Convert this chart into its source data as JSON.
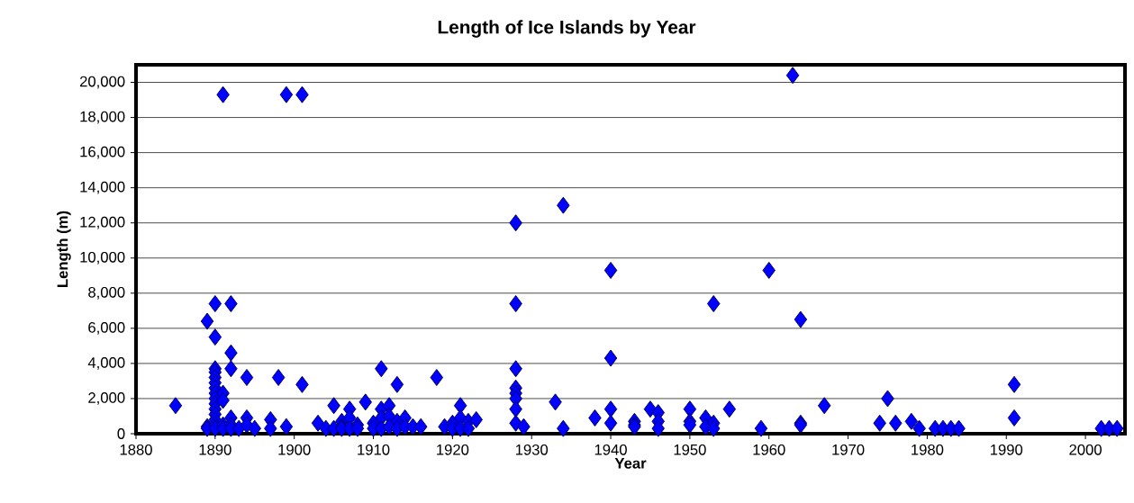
{
  "chart_data": {
    "type": "scatter",
    "title": "Length of Ice Islands by Year",
    "xlabel": "Year",
    "ylabel": "Length (m)",
    "x": [
      1885,
      1889,
      1889,
      1889,
      1890,
      1890,
      1890,
      1890,
      1890,
      1890,
      1890,
      1890,
      1890,
      1890,
      1890,
      1890,
      1890,
      1890,
      1890,
      1891,
      1891,
      1891,
      1891,
      1891,
      1892,
      1892,
      1892,
      1892,
      1892,
      1892,
      1893,
      1894,
      1894,
      1894,
      1895,
      1897,
      1897,
      1898,
      1899,
      1899,
      1901,
      1901,
      1903,
      1904,
      1905,
      1905,
      1906,
      1906,
      1906,
      1907,
      1907,
      1907,
      1908,
      1908,
      1909,
      1910,
      1910,
      1911,
      1911,
      1911,
      1911,
      1912,
      1912,
      1912,
      1913,
      1913,
      1913,
      1914,
      1914,
      1915,
      1916,
      1918,
      1919,
      1920,
      1920,
      1921,
      1921,
      1921,
      1922,
      1922,
      1923,
      1928,
      1928,
      1928,
      1928,
      1928,
      1928,
      1928,
      1928,
      1929,
      1933,
      1934,
      1934,
      1938,
      1940,
      1940,
      1940,
      1940,
      1943,
      1943,
      1943,
      1945,
      1946,
      1946,
      1946,
      1950,
      1950,
      1950,
      1952,
      1952,
      1953,
      1953,
      1953,
      1955,
      1959,
      1960,
      1963,
      1964,
      1964,
      1964,
      1967,
      1974,
      1975,
      1976,
      1978,
      1979,
      1981,
      1982,
      1983,
      1984,
      1991,
      1991,
      2002,
      2003,
      2004
    ],
    "values": [
      1600,
      6400,
      400,
      300,
      7400,
      5500,
      3700,
      3500,
      3200,
      2900,
      2600,
      2300,
      2000,
      1700,
      1400,
      1100,
      800,
      500,
      300,
      19300,
      2300,
      1900,
      500,
      300,
      7400,
      4600,
      3700,
      900,
      500,
      300,
      300,
      3200,
      900,
      500,
      300,
      800,
      300,
      3200,
      19300,
      400,
      19300,
      2800,
      600,
      300,
      1600,
      300,
      700,
      400,
      300,
      1400,
      900,
      300,
      500,
      300,
      1800,
      600,
      300,
      3700,
      1400,
      900,
      300,
      1600,
      1000,
      400,
      2800,
      700,
      300,
      900,
      400,
      400,
      400,
      3200,
      400,
      600,
      300,
      1600,
      900,
      300,
      700,
      300,
      800,
      12000,
      7400,
      3700,
      2600,
      2300,
      2000,
      1400,
      600,
      400,
      1800,
      13000,
      300,
      900,
      9300,
      4300,
      1400,
      600,
      700,
      500,
      400,
      1400,
      1200,
      700,
      300,
      1400,
      700,
      500,
      900,
      400,
      7400,
      600,
      300,
      1400,
      300,
      9300,
      20400,
      6500,
      600,
      500,
      1600,
      600,
      2000,
      600,
      700,
      300,
      300,
      300,
      300,
      300,
      2800,
      900,
      300,
      300,
      300
    ],
    "color": "#0000ff",
    "marker": "diamond",
    "grid": "y",
    "xlim": [
      1880,
      2005
    ],
    "xticks": [
      1880,
      1890,
      1900,
      1910,
      1920,
      1930,
      1940,
      1950,
      1960,
      1970,
      1980,
      1990,
      2000
    ],
    "ylim": [
      0,
      21000
    ],
    "yticks": [
      0,
      {
        "value": 2000,
        "label": "2,000"
      },
      {
        "value": 4000,
        "label": "4,000"
      },
      {
        "value": 6000,
        "label": "6,000"
      },
      {
        "value": 8000,
        "label": "8,000"
      },
      {
        "value": 10000,
        "label": "10,000"
      },
      {
        "value": 12000,
        "label": "12,000"
      },
      {
        "value": 14000,
        "label": "14,000"
      },
      {
        "value": 16000,
        "label": "16,000"
      },
      {
        "value": 18000,
        "label": "18,000"
      },
      {
        "value": 20000,
        "label": "20,000"
      }
    ]
  }
}
